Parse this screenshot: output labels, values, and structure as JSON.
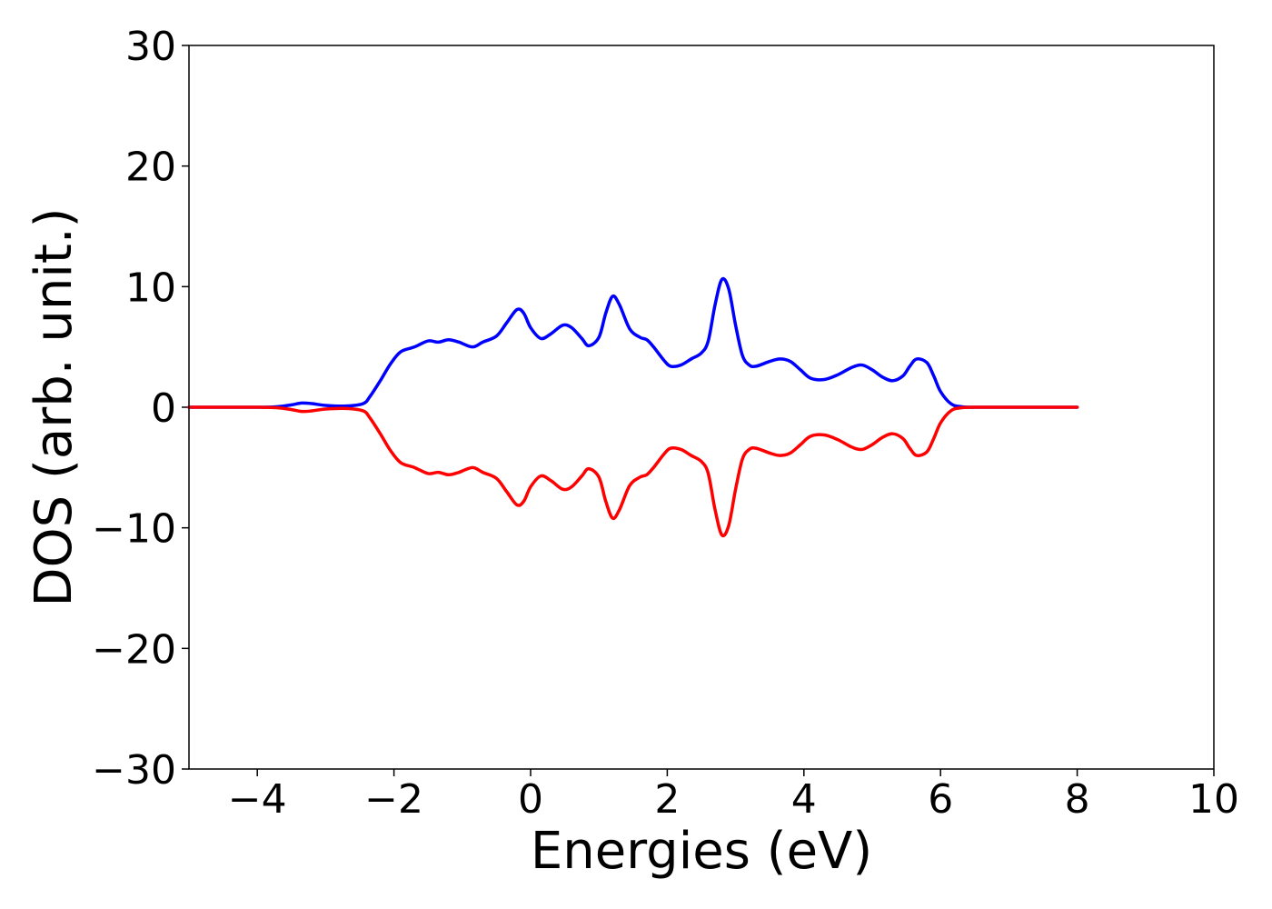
{
  "chart_data": {
    "type": "line",
    "title": "",
    "xlabel": "Energies (eV)",
    "ylabel": "DOS (arb. unit.)",
    "xlim": [
      -5,
      10
    ],
    "ylim": [
      -30,
      30
    ],
    "xticks": [
      -4,
      -2,
      0,
      2,
      4,
      6,
      8,
      10
    ],
    "yticks": [
      30,
      20,
      10,
      0,
      -10,
      -20,
      -30
    ],
    "xtick_labels": [
      "−4",
      "−2",
      "0",
      "2",
      "4",
      "6",
      "8",
      "10"
    ],
    "ytick_labels": [
      "30",
      "20",
      "10",
      "0",
      "−10",
      "−20",
      "−30"
    ],
    "grid": false,
    "legend": "none",
    "series": [
      {
        "color": "#0000ff",
        "x": [
          -5.0,
          -4.0,
          -3.7,
          -3.5,
          -3.35,
          -3.2,
          -3.0,
          -2.7,
          -2.45,
          -2.35,
          -2.2,
          -2.05,
          -1.9,
          -1.7,
          -1.5,
          -1.35,
          -1.2,
          -1.05,
          -0.85,
          -0.7,
          -0.5,
          -0.35,
          -0.2,
          -0.1,
          0.0,
          0.15,
          0.3,
          0.47,
          0.6,
          0.75,
          0.85,
          1.0,
          1.1,
          1.2,
          1.3,
          1.45,
          1.6,
          1.7,
          1.8,
          1.95,
          2.05,
          2.2,
          2.35,
          2.5,
          2.6,
          2.7,
          2.8,
          2.9,
          3.0,
          3.1,
          3.2,
          3.3,
          3.5,
          3.65,
          3.8,
          3.95,
          4.1,
          4.3,
          4.5,
          4.7,
          4.85,
          5.0,
          5.15,
          5.3,
          5.45,
          5.55,
          5.65,
          5.8,
          5.9,
          6.0,
          6.15,
          6.3,
          6.6,
          8.0
        ],
        "y": [
          0,
          0,
          0.05,
          0.2,
          0.35,
          0.3,
          0.15,
          0.1,
          0.3,
          0.9,
          2.2,
          3.6,
          4.6,
          5.0,
          5.5,
          5.4,
          5.6,
          5.4,
          5.0,
          5.4,
          5.9,
          7.0,
          8.1,
          7.8,
          6.6,
          5.7,
          6.1,
          6.8,
          6.6,
          5.7,
          5.1,
          5.8,
          7.8,
          9.2,
          8.5,
          6.5,
          5.8,
          5.6,
          5.0,
          3.9,
          3.4,
          3.5,
          4.0,
          4.5,
          5.5,
          8.5,
          10.6,
          9.8,
          6.8,
          4.3,
          3.5,
          3.4,
          3.8,
          4.0,
          3.8,
          3.1,
          2.4,
          2.3,
          2.7,
          3.3,
          3.5,
          3.1,
          2.5,
          2.2,
          2.6,
          3.4,
          4.0,
          3.7,
          2.6,
          1.3,
          0.3,
          0.05,
          0.0,
          0.0
        ]
      },
      {
        "color": "#ff0000",
        "x": [
          -5.0,
          -4.0,
          -3.7,
          -3.5,
          -3.35,
          -3.2,
          -3.0,
          -2.7,
          -2.45,
          -2.35,
          -2.2,
          -2.05,
          -1.9,
          -1.7,
          -1.5,
          -1.35,
          -1.2,
          -1.05,
          -0.85,
          -0.7,
          -0.5,
          -0.35,
          -0.2,
          -0.1,
          0.0,
          0.15,
          0.3,
          0.47,
          0.6,
          0.75,
          0.85,
          1.0,
          1.1,
          1.2,
          1.3,
          1.45,
          1.6,
          1.7,
          1.8,
          1.95,
          2.05,
          2.2,
          2.35,
          2.5,
          2.6,
          2.7,
          2.8,
          2.9,
          3.0,
          3.1,
          3.2,
          3.3,
          3.5,
          3.65,
          3.8,
          3.95,
          4.1,
          4.3,
          4.5,
          4.7,
          4.85,
          5.0,
          5.15,
          5.3,
          5.45,
          5.55,
          5.65,
          5.8,
          5.9,
          6.0,
          6.15,
          6.3,
          6.6,
          8.0
        ],
        "y": [
          0,
          0,
          -0.05,
          -0.2,
          -0.35,
          -0.3,
          -0.15,
          -0.1,
          -0.3,
          -0.9,
          -2.2,
          -3.6,
          -4.6,
          -5.0,
          -5.5,
          -5.4,
          -5.6,
          -5.4,
          -5.0,
          -5.4,
          -5.9,
          -7.0,
          -8.1,
          -7.8,
          -6.6,
          -5.7,
          -6.1,
          -6.8,
          -6.6,
          -5.7,
          -5.1,
          -5.8,
          -7.8,
          -9.2,
          -8.5,
          -6.5,
          -5.8,
          -5.6,
          -5.0,
          -3.9,
          -3.4,
          -3.5,
          -4.0,
          -4.5,
          -5.5,
          -8.5,
          -10.6,
          -9.8,
          -6.8,
          -4.3,
          -3.5,
          -3.4,
          -3.8,
          -4.0,
          -3.8,
          -3.1,
          -2.4,
          -2.3,
          -2.7,
          -3.3,
          -3.5,
          -3.1,
          -2.5,
          -2.2,
          -2.6,
          -3.4,
          -4.0,
          -3.7,
          -2.6,
          -1.3,
          -0.3,
          -0.05,
          0.0,
          0.0
        ]
      }
    ]
  }
}
